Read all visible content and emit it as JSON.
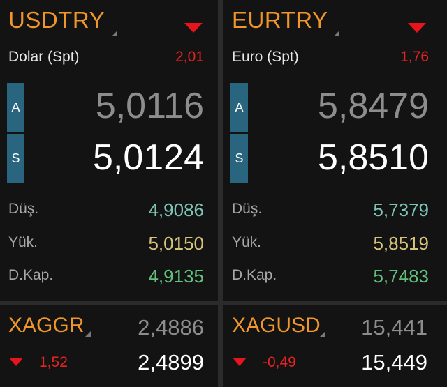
{
  "colors": {
    "symbol": "#f0962a",
    "down": "#e8141c",
    "low": "#7ec4b4",
    "high": "#d6c47c",
    "close": "#63c07c",
    "side_bg": "#2a6580"
  },
  "usdtry": {
    "symbol": "USDTRY",
    "name": "Dolar (Spt)",
    "change": "2,01",
    "ask_label": "A",
    "ask": "5,0116",
    "bid_label": "S",
    "bid": "5,0124",
    "low_label": "Düş.",
    "low": "4,9086",
    "high_label": "Yük.",
    "high": "5,0150",
    "close_label": "D.Kap.",
    "close": "4,9135"
  },
  "eurtry": {
    "symbol": "EURTRY",
    "name": "Euro (Spt)",
    "change": "1,76",
    "ask_label": "A",
    "ask": "5,8479",
    "bid_label": "S",
    "bid": "5,8510",
    "low_label": "Düş.",
    "low": "5,7379",
    "high_label": "Yük.",
    "high": "5,8519",
    "close_label": "D.Kap.",
    "close": "5,7483"
  },
  "xaggr": {
    "symbol": "XAGGR",
    "change": "1,52",
    "ask": "2,4886",
    "bid": "2,4899"
  },
  "xagusd": {
    "symbol": "XAGUSD",
    "change": "-0,49",
    "ask": "15,441",
    "bid": "15,449"
  }
}
